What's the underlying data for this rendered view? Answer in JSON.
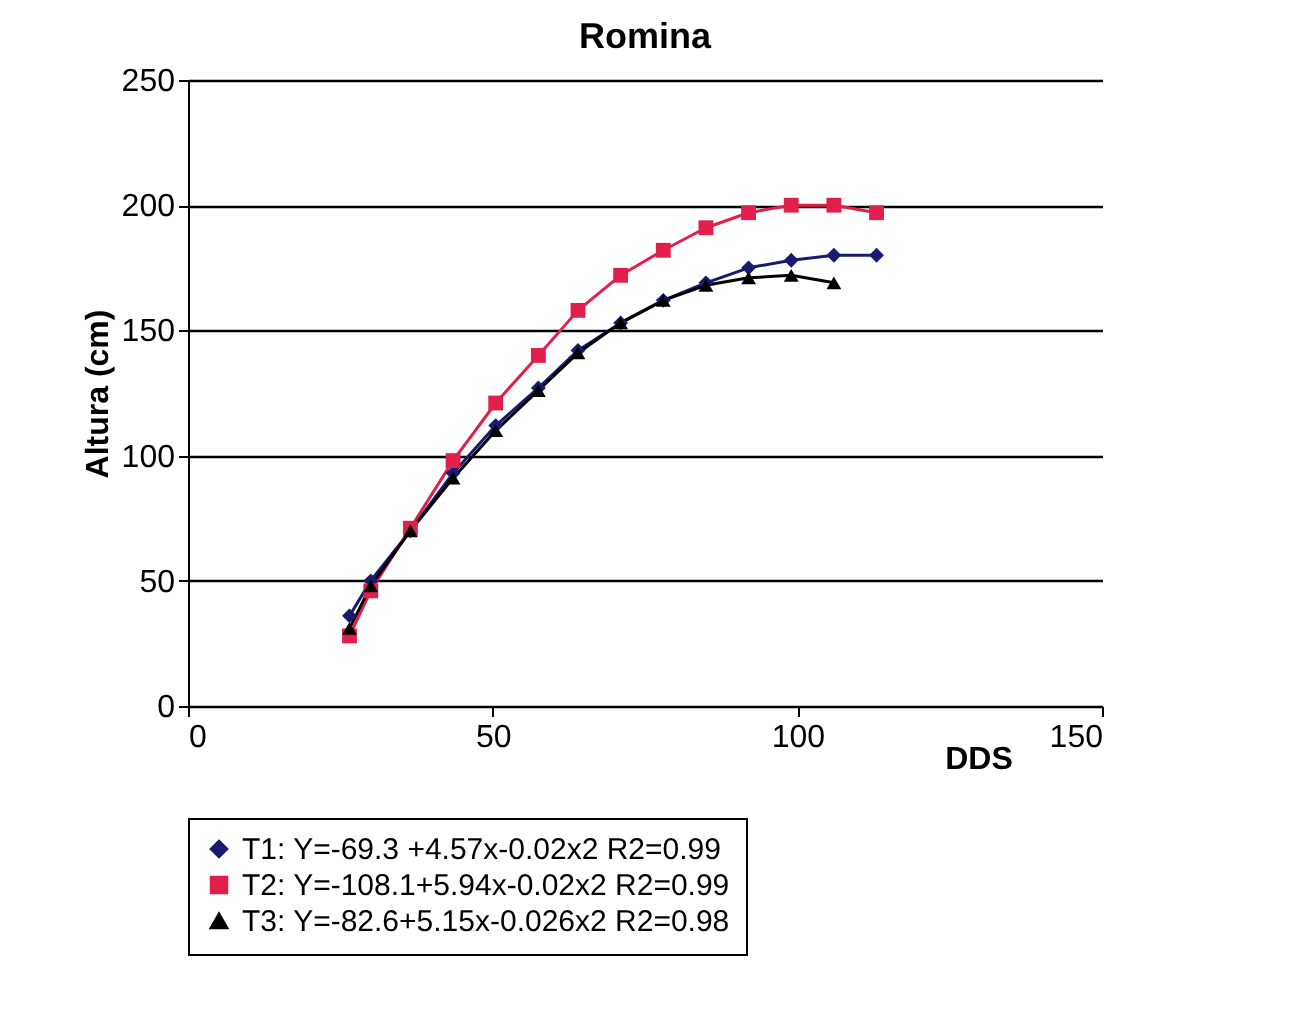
{
  "chart_data": {
    "type": "line",
    "title": "Romina",
    "xlabel": "DDS",
    "ylabel": "Altura (cm)",
    "x": [
      26.5,
      30,
      36.5,
      43.5,
      50.5,
      57.5,
      64,
      71,
      78,
      85,
      92,
      99,
      106,
      113
    ],
    "series": [
      {
        "name": "T1: Y=-69.3 +4.57x-0.02x2 R2=0.99",
        "color": "#1a1a6e",
        "marker": "diamond",
        "values": [
          36,
          50,
          70,
          93,
          112,
          127,
          142,
          153,
          162,
          169,
          175,
          178,
          180,
          180
        ]
      },
      {
        "name": "T2: Y=-108.1+5.94x-0.02x2 R2=0.99",
        "color": "#e0204a",
        "marker": "square",
        "values": [
          28,
          46,
          71,
          98,
          121,
          140,
          158,
          172,
          182,
          191,
          197,
          200,
          200,
          197
        ]
      },
      {
        "name": "T3: Y=-82.6+5.15x-0.026x2 R2=0.98",
        "color": "#000000",
        "marker": "triangle",
        "values": [
          31,
          48,
          70,
          91,
          110,
          126,
          141,
          153,
          162,
          168,
          171,
          172,
          169,
          null
        ]
      }
    ],
    "xlim": [
      0,
      150
    ],
    "xticks": [
      0,
      50,
      100,
      150
    ],
    "ylim": [
      0,
      250
    ],
    "yticks": [
      0,
      50,
      100,
      150,
      200,
      250
    ],
    "grid": "y",
    "legend": "bottom",
    "line_style": "solid"
  }
}
